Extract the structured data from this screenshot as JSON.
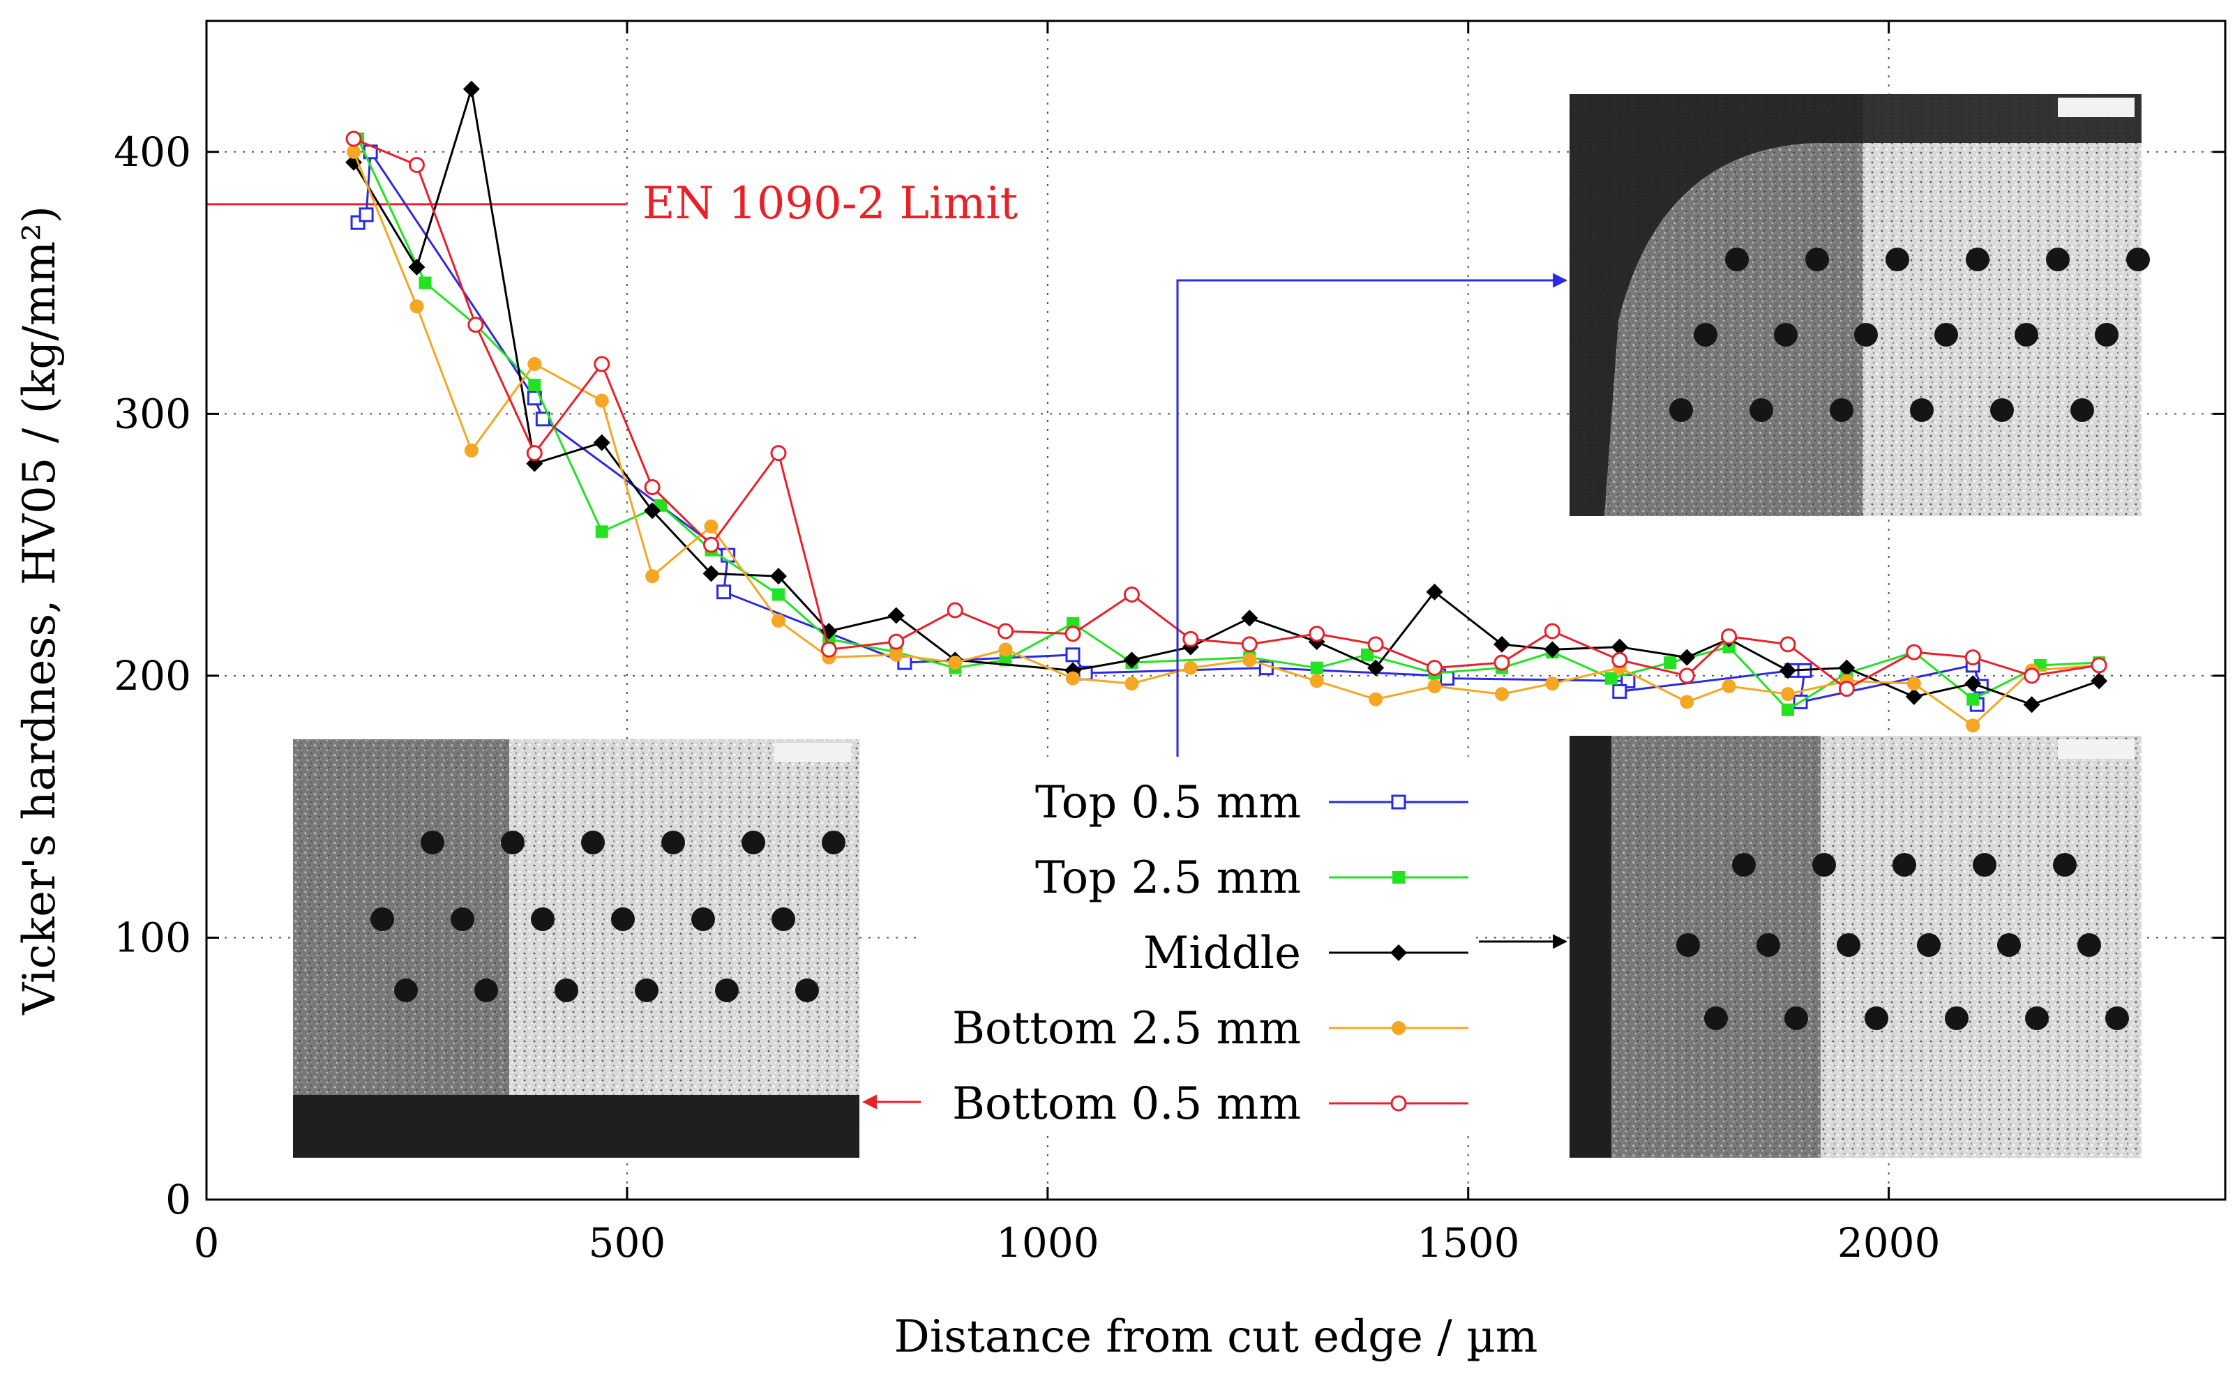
{
  "chart_data": {
    "type": "line",
    "xlabel": "Distance from cut edge / µm",
    "ylabel": "Vicker's hardness, HV05 / (kg/mm²)",
    "xlim": [
      0,
      2400
    ],
    "ylim": [
      0,
      450
    ],
    "xticks": [
      0,
      500,
      1000,
      1500,
      2000
    ],
    "yticks": [
      0,
      100,
      200,
      300,
      400
    ],
    "grid": "dotted",
    "legend_position": "center-bottom",
    "reference_line": {
      "label": "EN 1090-2 Limit",
      "y": 380,
      "x_end": 500,
      "color": "#e8202a"
    },
    "series": [
      {
        "name": "Top 0.5 mm",
        "color": "#2a2ae0",
        "marker": "open-square",
        "points": [
          [
            180,
            373
          ],
          [
            190,
            376
          ],
          [
            195,
            400
          ],
          [
            390,
            306
          ],
          [
            400,
            298
          ],
          [
            620,
            246
          ],
          [
            615,
            232
          ],
          [
            830,
            205
          ],
          [
            1030,
            208
          ],
          [
            1045,
            201
          ],
          [
            1260,
            203
          ],
          [
            1465,
            200
          ],
          [
            1475,
            199
          ],
          [
            1690,
            198
          ],
          [
            1680,
            194
          ],
          [
            1885,
            202
          ],
          [
            1900,
            202
          ],
          [
            1895,
            190
          ],
          [
            2100,
            204
          ],
          [
            2110,
            196
          ],
          [
            2105,
            189
          ]
        ]
      },
      {
        "name": "Top 2.5 mm",
        "color": "#22e222",
        "marker": "filled-square",
        "points": [
          [
            180,
            405
          ],
          [
            260,
            350
          ],
          [
            320,
            334
          ],
          [
            390,
            311
          ],
          [
            470,
            255
          ],
          [
            540,
            265
          ],
          [
            600,
            248
          ],
          [
            680,
            231
          ],
          [
            740,
            214
          ],
          [
            820,
            209
          ],
          [
            890,
            203
          ],
          [
            950,
            206
          ],
          [
            1030,
            220
          ],
          [
            1100,
            205
          ],
          [
            1240,
            207
          ],
          [
            1320,
            203
          ],
          [
            1380,
            208
          ],
          [
            1460,
            201
          ],
          [
            1540,
            203
          ],
          [
            1600,
            209
          ],
          [
            1670,
            199
          ],
          [
            1740,
            205
          ],
          [
            1810,
            211
          ],
          [
            1880,
            187
          ],
          [
            1950,
            201
          ],
          [
            2030,
            209
          ],
          [
            2100,
            191
          ],
          [
            2180,
            204
          ],
          [
            2250,
            205
          ]
        ]
      },
      {
        "name": "Middle",
        "color": "#000000",
        "marker": "filled-diamond",
        "points": [
          [
            175,
            396
          ],
          [
            250,
            356
          ],
          [
            315,
            424
          ],
          [
            390,
            281
          ],
          [
            470,
            289
          ],
          [
            530,
            263
          ],
          [
            600,
            239
          ],
          [
            680,
            238
          ],
          [
            740,
            217
          ],
          [
            820,
            223
          ],
          [
            890,
            206
          ],
          [
            1030,
            202
          ],
          [
            1100,
            206
          ],
          [
            1170,
            211
          ],
          [
            1240,
            222
          ],
          [
            1320,
            213
          ],
          [
            1390,
            203
          ],
          [
            1460,
            232
          ],
          [
            1540,
            212
          ],
          [
            1600,
            210
          ],
          [
            1680,
            211
          ],
          [
            1760,
            207
          ],
          [
            1810,
            214
          ],
          [
            1880,
            202
          ],
          [
            1950,
            203
          ],
          [
            2030,
            192
          ],
          [
            2100,
            197
          ],
          [
            2170,
            189
          ],
          [
            2250,
            198
          ]
        ]
      },
      {
        "name": "Bottom 2.5 mm",
        "color": "#f5a623",
        "marker": "filled-circle",
        "points": [
          [
            175,
            400
          ],
          [
            250,
            341
          ],
          [
            315,
            286
          ],
          [
            390,
            319
          ],
          [
            470,
            305
          ],
          [
            530,
            238
          ],
          [
            600,
            257
          ],
          [
            680,
            221
          ],
          [
            740,
            207
          ],
          [
            820,
            208
          ],
          [
            890,
            205
          ],
          [
            950,
            210
          ],
          [
            1030,
            199
          ],
          [
            1100,
            197
          ],
          [
            1170,
            203
          ],
          [
            1240,
            206
          ],
          [
            1320,
            198
          ],
          [
            1390,
            191
          ],
          [
            1460,
            196
          ],
          [
            1540,
            193
          ],
          [
            1600,
            197
          ],
          [
            1680,
            203
          ],
          [
            1760,
            190
          ],
          [
            1810,
            196
          ],
          [
            1880,
            193
          ],
          [
            1950,
            198
          ],
          [
            2030,
            197
          ],
          [
            2100,
            181
          ],
          [
            2170,
            202
          ],
          [
            2250,
            204
          ]
        ]
      },
      {
        "name": "Bottom 0.5 mm",
        "color": "#e8202a",
        "marker": "open-circle",
        "points": [
          [
            175,
            405
          ],
          [
            250,
            395
          ],
          [
            320,
            334
          ],
          [
            390,
            285
          ],
          [
            470,
            319
          ],
          [
            530,
            272
          ],
          [
            600,
            250
          ],
          [
            680,
            285
          ],
          [
            740,
            210
          ],
          [
            820,
            213
          ],
          [
            890,
            225
          ],
          [
            950,
            217
          ],
          [
            1030,
            216
          ],
          [
            1100,
            231
          ],
          [
            1170,
            214
          ],
          [
            1240,
            212
          ],
          [
            1320,
            216
          ],
          [
            1390,
            212
          ],
          [
            1460,
            203
          ],
          [
            1540,
            205
          ],
          [
            1600,
            217
          ],
          [
            1680,
            206
          ],
          [
            1760,
            200
          ],
          [
            1810,
            215
          ],
          [
            1880,
            212
          ],
          [
            1950,
            195
          ],
          [
            2030,
            209
          ],
          [
            2100,
            207
          ],
          [
            2170,
            200
          ],
          [
            2250,
            204
          ]
        ]
      }
    ]
  }
}
